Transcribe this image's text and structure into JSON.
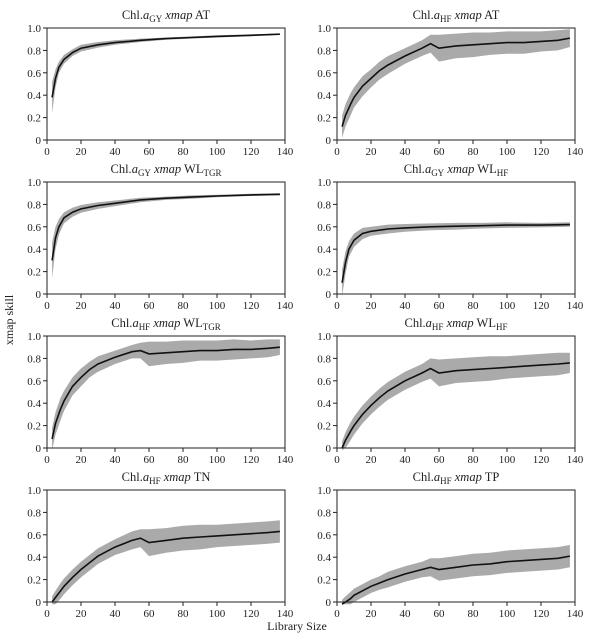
{
  "figure": {
    "ylabel": "xmap skill",
    "xlabel": "Library Size",
    "band_color": "#aaaaaa",
    "line_color": "#111111"
  },
  "chart_data": [
    {
      "type": "line",
      "title": {
        "prefix": "Chl.",
        "sub1": "a",
        "sub2": "GY",
        "sep": " ",
        "ital": "xmap",
        "rest": " AT",
        "sub3": ""
      },
      "x": [
        3,
        5,
        7,
        10,
        15,
        20,
        30,
        40,
        55,
        70,
        85,
        100,
        120,
        137
      ],
      "y": [
        0.38,
        0.55,
        0.65,
        0.72,
        0.78,
        0.82,
        0.85,
        0.87,
        0.89,
        0.905,
        0.915,
        0.925,
        0.935,
        0.945
      ],
      "band": [
        0.14,
        0.08,
        0.05,
        0.04,
        0.03,
        0.03,
        0.025,
        0.02,
        0.015,
        0.01,
        0.01,
        0.01,
        0.008,
        0.006
      ],
      "xlim": [
        0,
        140
      ],
      "ylim": [
        0,
        1
      ],
      "xticks": [
        0,
        20,
        40,
        60,
        80,
        100,
        120,
        140
      ],
      "yticks": [
        0,
        0.2,
        0.4,
        0.6,
        0.8,
        1.0
      ]
    },
    {
      "type": "line",
      "title": {
        "prefix": "Chl.",
        "sub1": "a",
        "sub2": "HF",
        "sep": " ",
        "ital": "xmap",
        "rest": " AT",
        "sub3": ""
      },
      "x": [
        3,
        5,
        8,
        10,
        15,
        20,
        25,
        30,
        40,
        50,
        55,
        60,
        70,
        80,
        90,
        100,
        110,
        120,
        130,
        137
      ],
      "y": [
        0.12,
        0.22,
        0.32,
        0.38,
        0.48,
        0.55,
        0.62,
        0.67,
        0.75,
        0.82,
        0.86,
        0.82,
        0.84,
        0.85,
        0.86,
        0.87,
        0.87,
        0.88,
        0.89,
        0.91
      ],
      "band": [
        0.1,
        0.1,
        0.1,
        0.09,
        0.09,
        0.08,
        0.08,
        0.08,
        0.07,
        0.07,
        0.08,
        0.12,
        0.11,
        0.11,
        0.1,
        0.1,
        0.1,
        0.09,
        0.09,
        0.08
      ],
      "xlim": [
        0,
        140
      ],
      "ylim": [
        0,
        1
      ],
      "xticks": [
        0,
        20,
        40,
        60,
        80,
        100,
        120,
        140
      ],
      "yticks": [
        0,
        0.2,
        0.4,
        0.6,
        0.8,
        1.0
      ]
    },
    {
      "type": "line",
      "title": {
        "prefix": "Chl.",
        "sub1": "a",
        "sub2": "GY",
        "sep": " ",
        "ital": "xmap",
        "rest": " WL",
        "sub3": "TGR"
      },
      "x": [
        3,
        5,
        7,
        10,
        15,
        20,
        30,
        40,
        55,
        70,
        85,
        100,
        120,
        137
      ],
      "y": [
        0.3,
        0.5,
        0.6,
        0.68,
        0.73,
        0.76,
        0.79,
        0.81,
        0.84,
        0.855,
        0.865,
        0.875,
        0.885,
        0.89
      ],
      "band": [
        0.16,
        0.1,
        0.07,
        0.05,
        0.04,
        0.035,
        0.03,
        0.025,
        0.02,
        0.015,
        0.015,
        0.012,
        0.01,
        0.01
      ],
      "xlim": [
        0,
        140
      ],
      "ylim": [
        0,
        1
      ],
      "xticks": [
        0,
        20,
        40,
        60,
        80,
        100,
        120,
        140
      ],
      "yticks": [
        0,
        0.2,
        0.4,
        0.6,
        0.8,
        1.0
      ]
    },
    {
      "type": "line",
      "title": {
        "prefix": "Chl.",
        "sub1": "a",
        "sub2": "GY",
        "sep": " ",
        "ital": "xmap",
        "rest": " WL",
        "sub3": "HF"
      },
      "x": [
        3,
        5,
        7,
        10,
        15,
        20,
        30,
        40,
        55,
        70,
        85,
        100,
        120,
        137
      ],
      "y": [
        0.1,
        0.28,
        0.4,
        0.48,
        0.54,
        0.56,
        0.58,
        0.59,
        0.6,
        0.605,
        0.61,
        0.615,
        0.615,
        0.62
      ],
      "band": [
        0.12,
        0.1,
        0.07,
        0.06,
        0.05,
        0.04,
        0.04,
        0.035,
        0.03,
        0.03,
        0.025,
        0.025,
        0.02,
        0.02
      ],
      "xlim": [
        0,
        140
      ],
      "ylim": [
        0,
        1
      ],
      "xticks": [
        0,
        20,
        40,
        60,
        80,
        100,
        120,
        140
      ],
      "yticks": [
        0,
        0.2,
        0.4,
        0.6,
        0.8,
        1.0
      ]
    },
    {
      "type": "line",
      "title": {
        "prefix": "Chl.",
        "sub1": "a",
        "sub2": "HF",
        "sep": " ",
        "ital": "xmap",
        "rest": " WL",
        "sub3": "TGR"
      },
      "x": [
        3,
        5,
        8,
        10,
        15,
        20,
        25,
        30,
        40,
        50,
        55,
        60,
        70,
        80,
        90,
        100,
        110,
        120,
        130,
        137
      ],
      "y": [
        0.08,
        0.22,
        0.35,
        0.42,
        0.55,
        0.63,
        0.7,
        0.75,
        0.81,
        0.86,
        0.87,
        0.84,
        0.85,
        0.86,
        0.87,
        0.87,
        0.88,
        0.88,
        0.89,
        0.9
      ],
      "band": [
        0.1,
        0.1,
        0.1,
        0.09,
        0.08,
        0.08,
        0.07,
        0.07,
        0.06,
        0.06,
        0.07,
        0.11,
        0.1,
        0.1,
        0.09,
        0.09,
        0.09,
        0.08,
        0.08,
        0.07
      ],
      "xlim": [
        0,
        140
      ],
      "ylim": [
        0,
        1
      ],
      "xticks": [
        0,
        20,
        40,
        60,
        80,
        100,
        120,
        140
      ],
      "yticks": [
        0,
        0.2,
        0.4,
        0.6,
        0.8,
        1.0
      ]
    },
    {
      "type": "line",
      "title": {
        "prefix": "Chl.",
        "sub1": "a",
        "sub2": "HF",
        "sep": " ",
        "ital": "xmap",
        "rest": " WL",
        "sub3": "HF"
      },
      "x": [
        3,
        5,
        8,
        10,
        15,
        20,
        25,
        30,
        40,
        50,
        55,
        60,
        70,
        80,
        90,
        100,
        110,
        120,
        130,
        137
      ],
      "y": [
        0.0,
        0.07,
        0.15,
        0.2,
        0.3,
        0.38,
        0.45,
        0.51,
        0.6,
        0.67,
        0.71,
        0.67,
        0.69,
        0.7,
        0.71,
        0.72,
        0.73,
        0.74,
        0.75,
        0.76
      ],
      "band": [
        0.06,
        0.07,
        0.08,
        0.08,
        0.08,
        0.08,
        0.08,
        0.08,
        0.08,
        0.08,
        0.09,
        0.12,
        0.11,
        0.11,
        0.11,
        0.1,
        0.1,
        0.1,
        0.1,
        0.09
      ],
      "xlim": [
        0,
        140
      ],
      "ylim": [
        0,
        1
      ],
      "xticks": [
        0,
        20,
        40,
        60,
        80,
        100,
        120,
        140
      ],
      "yticks": [
        0,
        0.2,
        0.4,
        0.6,
        0.8,
        1.0
      ]
    },
    {
      "type": "line",
      "title": {
        "prefix": "Chl.",
        "sub1": "a",
        "sub2": "HF",
        "sep": " ",
        "ital": "xmap",
        "rest": " TN",
        "sub3": ""
      },
      "x": [
        3,
        5,
        8,
        10,
        15,
        20,
        25,
        30,
        40,
        50,
        55,
        60,
        70,
        80,
        90,
        100,
        110,
        120,
        130,
        137
      ],
      "y": [
        0.0,
        0.04,
        0.1,
        0.14,
        0.22,
        0.29,
        0.35,
        0.41,
        0.49,
        0.55,
        0.57,
        0.53,
        0.55,
        0.57,
        0.58,
        0.59,
        0.6,
        0.61,
        0.62,
        0.63
      ],
      "band": [
        0.05,
        0.06,
        0.07,
        0.07,
        0.07,
        0.07,
        0.07,
        0.07,
        0.07,
        0.08,
        0.08,
        0.12,
        0.11,
        0.11,
        0.11,
        0.1,
        0.1,
        0.1,
        0.1,
        0.1
      ],
      "xlim": [
        0,
        140
      ],
      "ylim": [
        0,
        1
      ],
      "xticks": [
        0,
        20,
        40,
        60,
        80,
        100,
        120,
        140
      ],
      "yticks": [
        0,
        0.2,
        0.4,
        0.6,
        0.8,
        1.0
      ]
    },
    {
      "type": "line",
      "title": {
        "prefix": "Chl.",
        "sub1": "a",
        "sub2": "HF",
        "sep": " ",
        "ital": "xmap",
        "rest": " TP",
        "sub3": ""
      },
      "x": [
        3,
        5,
        8,
        10,
        15,
        20,
        25,
        30,
        40,
        50,
        55,
        60,
        70,
        80,
        90,
        100,
        110,
        120,
        130,
        137
      ],
      "y": [
        -0.02,
        0.0,
        0.03,
        0.06,
        0.1,
        0.14,
        0.17,
        0.2,
        0.25,
        0.29,
        0.31,
        0.29,
        0.31,
        0.33,
        0.34,
        0.36,
        0.37,
        0.38,
        0.39,
        0.41
      ],
      "band": [
        0.04,
        0.05,
        0.06,
        0.06,
        0.06,
        0.06,
        0.06,
        0.07,
        0.07,
        0.07,
        0.08,
        0.1,
        0.1,
        0.1,
        0.1,
        0.1,
        0.1,
        0.1,
        0.1,
        0.1
      ],
      "xlim": [
        0,
        140
      ],
      "ylim": [
        0,
        1
      ],
      "xticks": [
        0,
        20,
        40,
        60,
        80,
        100,
        120,
        140
      ],
      "yticks": [
        0,
        0.2,
        0.4,
        0.6,
        0.8,
        1.0
      ]
    }
  ]
}
